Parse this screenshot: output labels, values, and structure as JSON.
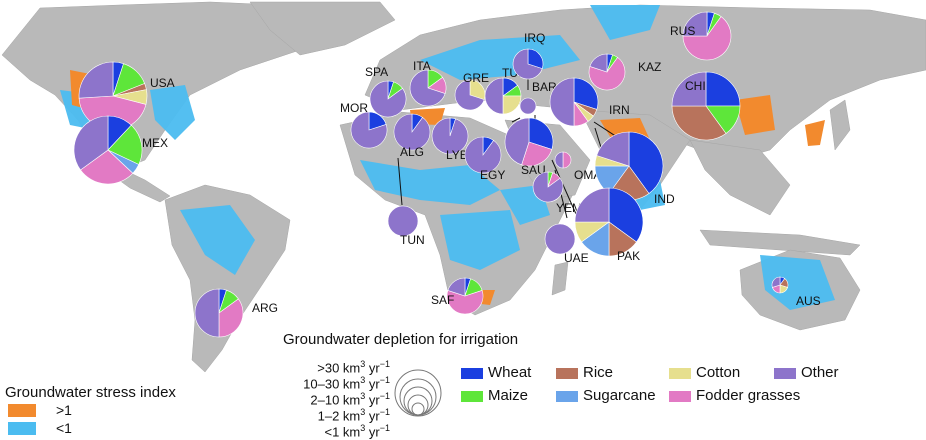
{
  "colors": {
    "ocean": "#ffffff",
    "land": "#b9b9b9",
    "stress_high": "#f28a2e",
    "stress_low": "#4bbcf0",
    "Wheat": "#1b3fe0",
    "Maize": "#5ee63a",
    "Rice": "#b8735c",
    "Sugarcane": "#6aa4ea",
    "Cotton": "#e6df8e",
    "Fodder grasses": "#e27ac4",
    "Other": "#8d74cb"
  },
  "stress_legend": {
    "title": "Groundwater stress index",
    "high_label": ">1",
    "low_label": "<1"
  },
  "depletion_legend": {
    "title": "Groundwater depletion for irrigation",
    "classes": [
      {
        "pre": ">30 km",
        "post": " yr"
      },
      {
        "pre": "10–30 km",
        "post": " yr"
      },
      {
        "pre": "2–10 km",
        "post": " yr"
      },
      {
        "pre": "1–2 km",
        "post": " yr"
      },
      {
        "pre": "<1 km",
        "post": " yr"
      }
    ],
    "exp3": "3",
    "expm1": "−1"
  },
  "crop_legend": [
    "Wheat",
    "Maize",
    "Rice",
    "Sugarcane",
    "Cotton",
    "Fodder grasses",
    "Other"
  ],
  "countries": [
    {
      "code": "USA",
      "size": ">30",
      "shares": {
        "Wheat": 0.05,
        "Maize": 0.14,
        "Rice": 0.03,
        "Cotton": 0.07,
        "Fodder grasses": 0.45,
        "Other": 0.26
      }
    },
    {
      "code": "MEX",
      "size": ">30",
      "shares": {
        "Wheat": 0.12,
        "Maize": 0.2,
        "Sugarcane": 0.05,
        "Fodder grasses": 0.28,
        "Other": 0.35
      }
    },
    {
      "code": "SPA",
      "size": "2–10",
      "shares": {
        "Wheat": 0.05,
        "Maize": 0.1,
        "Other": 0.85
      }
    },
    {
      "code": "ITA",
      "size": "2–10",
      "shares": {
        "Maize": 0.15,
        "Fodder grasses": 0.15,
        "Other": 0.7
      }
    },
    {
      "code": "GRE",
      "size": "1–2",
      "shares": {
        "Cotton": 0.3,
        "Other": 0.7
      }
    },
    {
      "code": "TUR",
      "size": "2–10",
      "shares": {
        "Wheat": 0.15,
        "Maize": 0.1,
        "Cotton": 0.25,
        "Other": 0.5
      }
    },
    {
      "code": "IRQ",
      "size": "1–2",
      "shares": {
        "Wheat": 0.3,
        "Other": 0.7
      }
    },
    {
      "code": "BAR",
      "size": "<1",
      "shares": {
        "Other": 1.0
      }
    },
    {
      "code": "MOR",
      "size": "2–10",
      "shares": {
        "Wheat": 0.2,
        "Other": 0.8
      }
    },
    {
      "code": "ALG",
      "size": "2–10",
      "shares": {
        "Wheat": 0.1,
        "Other": 0.9
      }
    },
    {
      "code": "LYB",
      "size": "2–10",
      "shares": {
        "Wheat": 0.05,
        "Other": 0.95
      }
    },
    {
      "code": "EGY",
      "size": "2–10",
      "shares": {
        "Wheat": 0.1,
        "Other": 0.9
      }
    },
    {
      "code": "TUN",
      "size": "1–2",
      "shares": {
        "Other": 1.0
      }
    },
    {
      "code": "SAU",
      "size": "10–30",
      "shares": {
        "Wheat": 0.3,
        "Fodder grasses": 0.25,
        "Other": 0.45
      }
    },
    {
      "code": "IRN",
      "size": "10–30",
      "shares": {
        "Wheat": 0.3,
        "Rice": 0.05,
        "Cotton": 0.05,
        "Fodder grasses": 0.1,
        "Other": 0.5
      }
    },
    {
      "code": "OMA",
      "size": "<1",
      "shares": {
        "Fodder grasses": 0.5,
        "Other": 0.5
      }
    },
    {
      "code": "YEM",
      "size": "1–2",
      "shares": {
        "Maize": 0.05,
        "Fodder grasses": 0.1,
        "Other": 0.85
      }
    },
    {
      "code": "UAE",
      "size": "1–2",
      "shares": {
        "Other": 1.0
      }
    },
    {
      "code": "IND",
      "size": ">30",
      "shares": {
        "Wheat": 0.4,
        "Rice": 0.2,
        "Sugarcane": 0.15,
        "Cotton": 0.05,
        "Other": 0.2
      }
    },
    {
      "code": "PAK",
      "size": ">30",
      "shares": {
        "Wheat": 0.35,
        "Rice": 0.15,
        "Sugarcane": 0.15,
        "Cotton": 0.1,
        "Other": 0.25
      }
    },
    {
      "code": "CHI",
      "size": ">30",
      "shares": {
        "Wheat": 0.25,
        "Maize": 0.15,
        "Rice": 0.35,
        "Other": 0.25
      }
    },
    {
      "code": "KAZ",
      "size": "2–10",
      "shares": {
        "Wheat": 0.05,
        "Maize": 0.05,
        "Fodder grasses": 0.7,
        "Other": 0.2
      }
    },
    {
      "code": "RUS",
      "size": "10–30",
      "shares": {
        "Wheat": 0.05,
        "Maize": 0.05,
        "Fodder grasses": 0.65,
        "Other": 0.25
      }
    },
    {
      "code": "SAF",
      "size": "2–10",
      "shares": {
        "Wheat": 0.05,
        "Maize": 0.15,
        "Fodder grasses": 0.6,
        "Other": 0.2
      }
    },
    {
      "code": "ARG",
      "size": "10–30",
      "shares": {
        "Wheat": 0.05,
        "Maize": 0.1,
        "Fodder grasses": 0.35,
        "Other": 0.5
      }
    },
    {
      "code": "AUS",
      "size": "<1",
      "shares": {
        "Wheat": 0.1,
        "Rice": 0.2,
        "Cotton": 0.2,
        "Fodder grasses": 0.2,
        "Other": 0.3
      }
    }
  ]
}
